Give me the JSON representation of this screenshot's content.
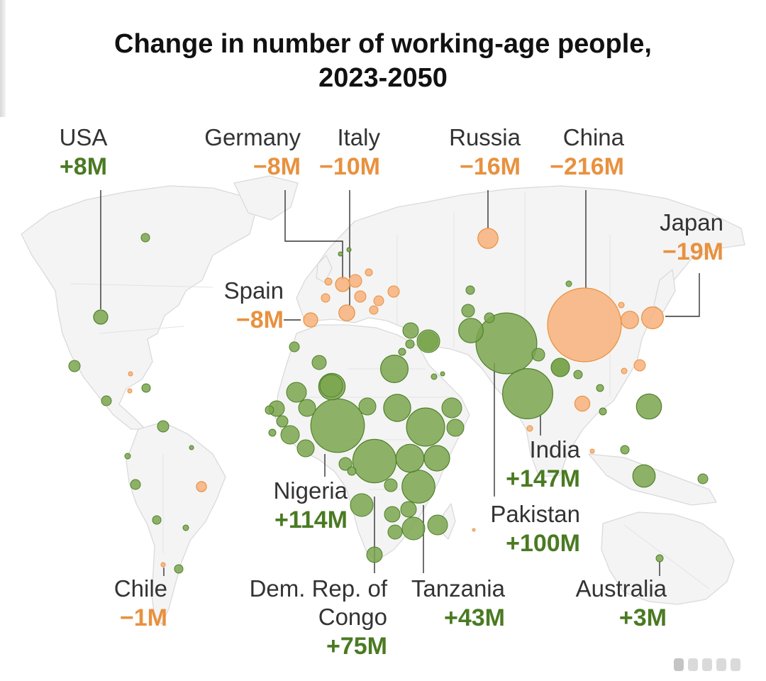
{
  "title_line1": "Change in number of working-age people,",
  "title_line2": "2023-2050",
  "colors": {
    "decline": "#f7b07a",
    "growth": "#7aa64e",
    "decline_text": "#e8913f",
    "growth_text": "#4a7a22",
    "land": "#f3f3f3",
    "border": "#dcdcdc"
  },
  "countries": {
    "usa": {
      "name": "USA",
      "value": "+8M"
    },
    "germany": {
      "name": "Germany",
      "value": "−8M"
    },
    "italy": {
      "name": "Italy",
      "value": "−10M"
    },
    "russia": {
      "name": "Russia",
      "value": "−16M"
    },
    "china": {
      "name": "China",
      "value": "−216M"
    },
    "japan": {
      "name": "Japan",
      "value": "−19M"
    },
    "spain": {
      "name": "Spain",
      "value": "−8M"
    },
    "india": {
      "name": "India",
      "value": "+147M"
    },
    "pakistan": {
      "name": "Pakistan",
      "value": "+100M"
    },
    "nigeria": {
      "name": "Nigeria",
      "value": "+114M"
    },
    "chile": {
      "name": "Chile",
      "value": "−1M"
    },
    "drc": {
      "name_line1": "Dem. Rep. of",
      "name_line2": "Congo",
      "value": "+75M"
    },
    "tanzania": {
      "name": "Tanzania",
      "value": "+43M"
    },
    "australia": {
      "name": "Australia",
      "value": "+3M"
    }
  },
  "bubbles": [
    {
      "id": "china",
      "v": -216
    },
    {
      "id": "india",
      "v": 147
    },
    {
      "id": "nigeria",
      "v": 114
    },
    {
      "id": "pakistan",
      "v": 100
    },
    {
      "id": "drc",
      "v": 75
    },
    {
      "id": "ethiopia",
      "v": 58
    },
    {
      "id": "tanzania",
      "v": 43
    },
    {
      "id": "egypt",
      "v": 30
    },
    {
      "id": "sudan",
      "v": 29
    },
    {
      "id": "uganda",
      "v": 31
    },
    {
      "id": "kenya",
      "v": 26
    },
    {
      "id": "niger",
      "v": 28
    },
    {
      "id": "afghanistan",
      "v": 24
    },
    {
      "id": "iraq",
      "v": 14
    },
    {
      "id": "japan",
      "v": -19
    },
    {
      "id": "russia",
      "v": -16
    },
    {
      "id": "philippines",
      "v": 25
    },
    {
      "id": "indonesia",
      "v": 20
    },
    {
      "id": "korea",
      "v": -12
    },
    {
      "id": "thailand",
      "v": -9
    },
    {
      "id": "italy",
      "v": -10
    },
    {
      "id": "germany",
      "v": -8
    },
    {
      "id": "spain",
      "v": -8
    },
    {
      "id": "usa",
      "v": 8
    },
    {
      "id": "bangladesh",
      "v": 13
    },
    {
      "id": "brazil",
      "v": -4
    }
  ]
}
